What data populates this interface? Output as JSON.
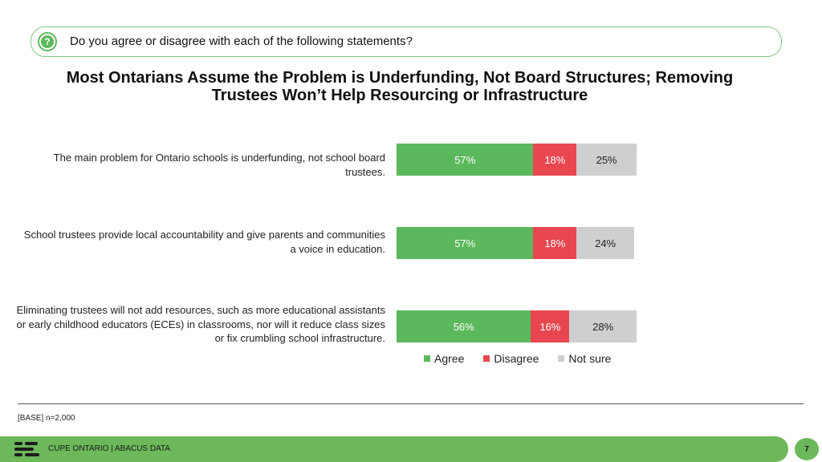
{
  "question": "Do you agree or disagree with each of the following statements?",
  "title_line1": "Most Ontarians Assume the Problem is Underfunding, Not Board Structures; Removing",
  "title_line2": "Trustees Won’t Help Resourcing or Infrastructure",
  "chart_data": {
    "type": "bar",
    "orientation": "horizontal",
    "stacked": true,
    "categories": [
      "The main problem for Ontario schools is underfunding, not school board trustees.",
      "School trustees provide local accountability and give parents and communities a voice in education.",
      "Eliminating trustees will not add resources, such as more educational assistants or early childhood educators (ECEs) in classrooms, nor will it reduce class sizes or fix crumbling school infrastructure."
    ],
    "series": [
      {
        "name": "Agree",
        "color": "#5cb85c",
        "values": [
          57,
          57,
          56
        ],
        "labels": [
          "57%",
          "57%",
          "56%"
        ]
      },
      {
        "name": "Disagree",
        "color": "#e8474f",
        "values": [
          18,
          18,
          16
        ],
        "labels": [
          "18%",
          "18%",
          "16%"
        ]
      },
      {
        "name": "Not sure",
        "color": "#cfcfcf",
        "values": [
          25,
          24,
          28
        ],
        "labels": [
          "25%",
          "24%",
          "28%"
        ]
      }
    ],
    "legend_position": "bottom"
  },
  "base_note": "[BASE] n=2,000",
  "footer_text": "CUPE ONTARIO  |  ABACUS DATA",
  "page_number": "7"
}
